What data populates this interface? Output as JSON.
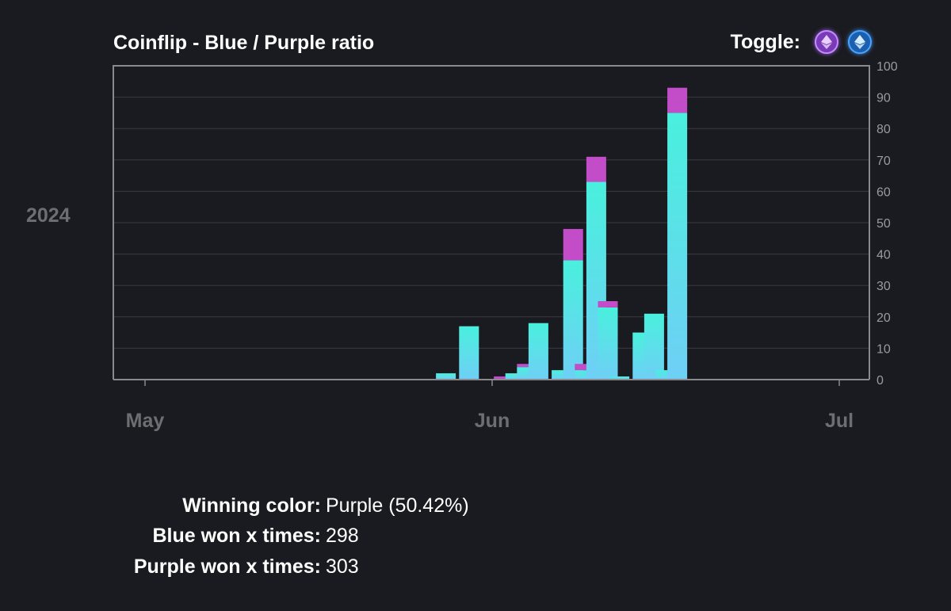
{
  "chart_data": {
    "type": "bar",
    "stacked": true,
    "title": "Coinflip - Blue / Purple ratio",
    "year_label": "2024",
    "x_ticks": [
      "May",
      "Jun",
      "Jul"
    ],
    "y_ticks": [
      "100",
      "90",
      "80",
      "70",
      "60",
      "50",
      "40",
      "30",
      "20",
      "10",
      "0"
    ],
    "ylim": [
      0,
      100
    ],
    "y_axis_side": "right",
    "grid": true,
    "series": [
      {
        "name": "Blue",
        "color": "#49f0dd",
        "color_bottom": "#6fcff5",
        "values": [
          2,
          17,
          0,
          2,
          4,
          18,
          3,
          38,
          3,
          63,
          23,
          1,
          15,
          21,
          3,
          85
        ]
      },
      {
        "name": "Purple",
        "color": "#c34cc8",
        "values": [
          0,
          0,
          1,
          0,
          1,
          0,
          0,
          10,
          2,
          8,
          2,
          0,
          0,
          0,
          0,
          8
        ]
      }
    ],
    "day_offsets": [
      26,
      28,
      31,
      32,
      33,
      34,
      36,
      37,
      38,
      39,
      40,
      41,
      43,
      44,
      45,
      46
    ]
  },
  "toggle": {
    "label": "Toggle:",
    "purple_icon": "eth-diamond-icon",
    "blue_icon": "eth-diamond-icon"
  },
  "stats": {
    "winning_label": "Winning color:",
    "winning_value": "Purple (50.42%)",
    "blue_label": "Blue won x times:",
    "blue_value": "298",
    "purple_label": "Purple won x times:",
    "purple_value": "303"
  },
  "colors": {
    "background": "#1a1b20",
    "grid": "#3a3b40",
    "axis": "#8a8a8e",
    "muted_text": "#6d6d72"
  }
}
